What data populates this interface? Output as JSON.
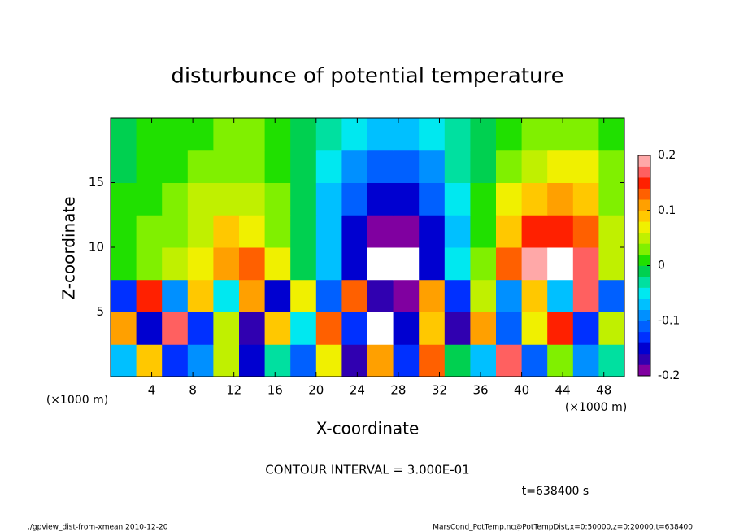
{
  "chart_data": {
    "type": "heatmap",
    "title": "disturbunce of potential temperature",
    "xlabel": "X-coordinate",
    "ylabel": "Z-coordinate",
    "x_unit": "(×1000 m)",
    "x_unit_right": "(×1000 m)",
    "contour_note": "CONTOUR INTERVAL = 3.000E-01",
    "time_note": "t=638400 s",
    "footer_left": "./gpview_dist-from-xmean  2010-12-20",
    "footer_right": "MarsCond_PotTemp.nc@PotTempDist,x=0:50000,z=0:20000,t=638400",
    "xlim": [
      0,
      50
    ],
    "ylim": [
      0,
      20
    ],
    "xticks": [
      4,
      8,
      12,
      16,
      20,
      24,
      28,
      32,
      36,
      40,
      44,
      48
    ],
    "yticks": [
      5,
      10,
      15
    ],
    "x": [
      1.25,
      3.75,
      6.25,
      8.75,
      11.25,
      13.75,
      16.25,
      18.75,
      21.25,
      23.75,
      26.25,
      28.75,
      31.25,
      33.75,
      36.25,
      38.75,
      41.25,
      43.75,
      46.25,
      48.75
    ],
    "z": [
      1.25,
      3.75,
      6.25,
      8.75,
      11.25,
      13.75,
      16.25,
      18.75
    ],
    "values": [
      [
        -0.06,
        0.1,
        -0.12,
        -0.08,
        0.06,
        -0.14,
        -0.02,
        -0.1,
        0.08,
        -0.16,
        0.12,
        -0.12,
        0.14,
        0.0,
        -0.06,
        0.18,
        -0.1,
        0.04,
        -0.08,
        -0.02
      ],
      [
        0.12,
        -0.14,
        0.18,
        -0.12,
        0.05,
        -0.16,
        0.1,
        -0.04,
        0.14,
        -0.12,
        0.22,
        -0.14,
        0.1,
        -0.16,
        0.12,
        -0.1,
        0.08,
        0.16,
        -0.12,
        0.06
      ],
      [
        -0.12,
        0.15,
        -0.08,
        0.1,
        -0.05,
        0.12,
        -0.14,
        0.08,
        -0.1,
        0.14,
        -0.16,
        -0.2,
        0.12,
        -0.12,
        0.06,
        -0.08,
        0.1,
        -0.06,
        0.18,
        -0.1
      ],
      [
        0.02,
        0.03,
        0.05,
        0.08,
        0.12,
        0.14,
        0.07,
        0.0,
        -0.06,
        -0.15,
        -0.24,
        -0.24,
        -0.15,
        -0.05,
        0.03,
        0.14,
        0.19,
        0.22,
        0.17,
        0.06
      ],
      [
        0.02,
        0.03,
        0.04,
        0.06,
        0.09,
        0.08,
        0.04,
        0.0,
        -0.07,
        -0.14,
        -0.19,
        -0.19,
        -0.14,
        -0.06,
        0.02,
        0.1,
        0.15,
        0.16,
        0.13,
        0.05
      ],
      [
        0.01,
        0.02,
        0.03,
        0.05,
        0.06,
        0.05,
        0.03,
        0.0,
        -0.06,
        -0.11,
        -0.15,
        -0.15,
        -0.11,
        -0.05,
        0.01,
        0.07,
        0.1,
        0.12,
        0.1,
        0.04
      ],
      [
        0.0,
        0.01,
        0.02,
        0.03,
        0.04,
        0.04,
        0.02,
        0.0,
        -0.04,
        -0.08,
        -0.11,
        -0.11,
        -0.08,
        -0.03,
        0.0,
        0.04,
        0.06,
        0.08,
        0.07,
        0.03
      ],
      [
        0.0,
        0.01,
        0.02,
        0.02,
        0.03,
        0.03,
        0.02,
        0.0,
        -0.03,
        -0.05,
        -0.07,
        -0.07,
        -0.05,
        -0.02,
        0.0,
        0.02,
        0.03,
        0.04,
        0.04,
        0.02
      ]
    ],
    "clim": [
      -0.2,
      0.2
    ],
    "cticks": [
      -0.2,
      -0.1,
      0,
      0.1,
      0.2
    ],
    "levels": [
      -0.2,
      -0.18,
      -0.16,
      -0.14,
      -0.12,
      -0.1,
      -0.08,
      -0.06,
      -0.04,
      -0.02,
      0,
      0.02,
      0.04,
      0.06,
      0.08,
      0.1,
      0.12,
      0.14,
      0.16,
      0.18,
      0.2
    ],
    "colors": [
      "#8000a0",
      "#3000b0",
      "#0000d0",
      "#0030ff",
      "#0060ff",
      "#0090ff",
      "#00c0ff",
      "#00e8f0",
      "#00e0a0",
      "#00d050",
      "#20e000",
      "#80f000",
      "#c0f000",
      "#f0f000",
      "#ffc800",
      "#ffa000",
      "#ff6000",
      "#ff2000",
      "#ff6060",
      "#ffa8a8"
    ],
    "out_of_range_color": "#ffffff"
  }
}
